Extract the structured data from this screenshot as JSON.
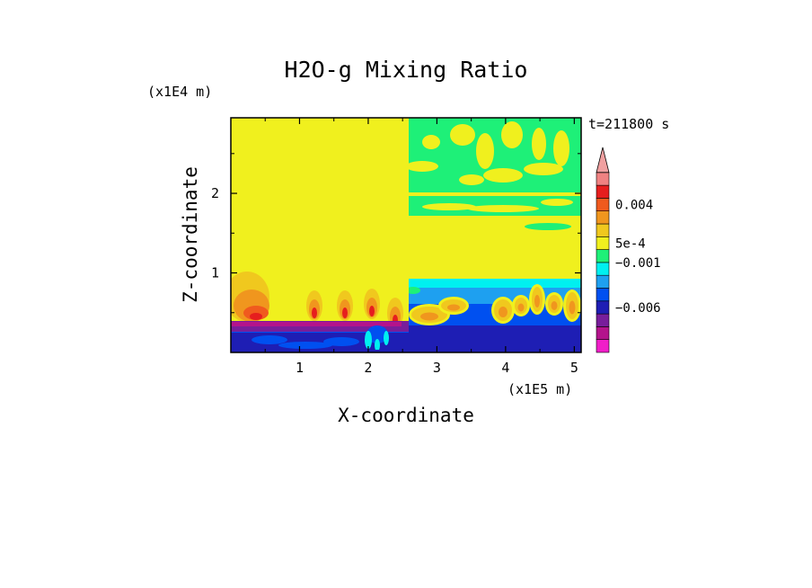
{
  "chart_data": {
    "type": "heatmap",
    "title": "H2O-g Mixing Ratio",
    "xlabel": "X-coordinate",
    "ylabel": "Z-coordinate",
    "x_unit": "(x1E5 m)",
    "y_unit": "(x1E4 m)",
    "time_label": "t=211800 s",
    "xlim": [
      0,
      5.1
    ],
    "ylim": [
      0,
      2.95
    ],
    "x_ticks": [
      "1",
      "2",
      "3",
      "4",
      "5"
    ],
    "y_ticks": [
      "1",
      "2"
    ],
    "x_tick_values": [
      1,
      2,
      3,
      4,
      5
    ],
    "y_tick_values": [
      1,
      2
    ],
    "colorbar": {
      "colors": [
        "#f01ec8",
        "#b4148c",
        "#781e9b",
        "#1e1eb4",
        "#0050f0",
        "#1ea0f0",
        "#00f0f0",
        "#1ef078",
        "#f0f01e",
        "#f0c81e",
        "#f0961e",
        "#f05a1e",
        "#e61e1e",
        "#f08282"
      ],
      "arrow_color": "#f0a0a0",
      "labels": [
        "0.004",
        "5e-4",
        "−0.001",
        "−0.006"
      ],
      "label_levels": [
        11.5,
        8.5,
        7.0,
        3.5
      ]
    },
    "palette": {
      "yellow": "#f0f01e",
      "green": "#1ef078",
      "cyan": "#00f0f0",
      "lightblue": "#1ea0f0",
      "blue": "#0050f0",
      "navy": "#1e1eb4",
      "purple": "#781e9b",
      "magenta": "#b4148c",
      "gold": "#f0c81e",
      "orange": "#f0961e",
      "redorange": "#f05a1e",
      "red": "#e61e1e"
    }
  }
}
